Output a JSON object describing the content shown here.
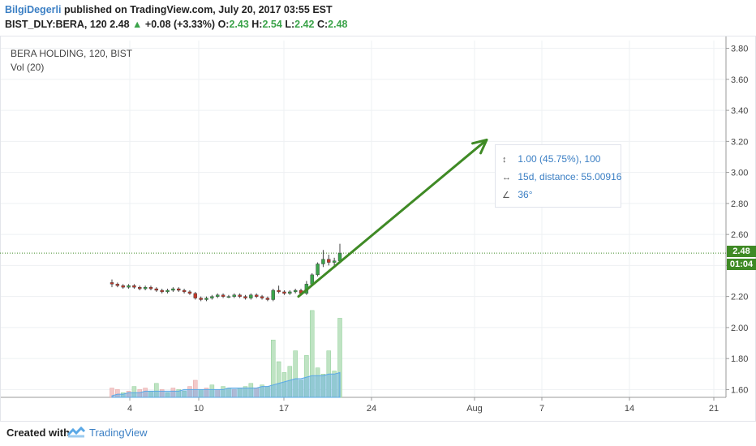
{
  "header": {
    "author": "BilgiDegerli",
    "published": "published on TradingView.com, July 20, 2017 03:55 EST",
    "symbol": "BIST_DLY:BERA, 120",
    "last": "2.48",
    "change": "+0.08 (+3.33%)",
    "o_label": "O:",
    "o_val": "2.43",
    "h_label": "H:",
    "h_val": "2.54",
    "l_label": "L:",
    "l_val": "2.42",
    "c_label": "C:",
    "c_val": "2.48"
  },
  "legend": {
    "title": "BERA HOLDING, 120, BIST",
    "indicator": "Vol (20)"
  },
  "measure": {
    "price_line": "1.00 (45.75%), 100",
    "time_line": "15d, distance: 55.00916",
    "angle_line": "36°"
  },
  "price_tags": {
    "last": "2.48",
    "countdown": "01:04"
  },
  "footer": {
    "created": "Created with",
    "brand": "TradingView"
  },
  "colors": {
    "up": "#3ba34a",
    "down": "#c0392b",
    "arrow": "#3f8a25",
    "accent": "#3b7fc4",
    "volume_up": "#bfe3c3",
    "volume_down": "#f3c9c9",
    "volume_ma": "#5aa8e6"
  },
  "chart_data": {
    "type": "candlestick",
    "ylim": [
      1.55,
      3.85
    ],
    "y_ticks": [
      "3.80",
      "3.60",
      "3.40",
      "3.20",
      "3.00",
      "2.80",
      "2.60",
      "2.40",
      "2.20",
      "2.00",
      "1.80",
      "1.60"
    ],
    "x_ticks": [
      "4",
      "10",
      "17",
      "24",
      "Aug",
      "7",
      "14",
      "21"
    ],
    "candles": [
      [
        2.29,
        2.31,
        2.26,
        2.28
      ],
      [
        2.28,
        2.29,
        2.26,
        2.27
      ],
      [
        2.27,
        2.28,
        2.25,
        2.26
      ],
      [
        2.26,
        2.28,
        2.25,
        2.27
      ],
      [
        2.27,
        2.28,
        2.25,
        2.26
      ],
      [
        2.26,
        2.27,
        2.24,
        2.25
      ],
      [
        2.25,
        2.27,
        2.24,
        2.26
      ],
      [
        2.26,
        2.27,
        2.24,
        2.25
      ],
      [
        2.25,
        2.26,
        2.23,
        2.24
      ],
      [
        2.24,
        2.25,
        2.22,
        2.23
      ],
      [
        2.23,
        2.25,
        2.22,
        2.24
      ],
      [
        2.24,
        2.26,
        2.23,
        2.25
      ],
      [
        2.25,
        2.26,
        2.23,
        2.24
      ],
      [
        2.24,
        2.25,
        2.22,
        2.23
      ],
      [
        2.23,
        2.24,
        2.21,
        2.22
      ],
      [
        2.22,
        2.23,
        2.18,
        2.19
      ],
      [
        2.19,
        2.2,
        2.17,
        2.18
      ],
      [
        2.18,
        2.2,
        2.17,
        2.19
      ],
      [
        2.19,
        2.21,
        2.18,
        2.2
      ],
      [
        2.2,
        2.22,
        2.19,
        2.21
      ],
      [
        2.21,
        2.22,
        2.19,
        2.2
      ],
      [
        2.2,
        2.21,
        2.19,
        2.2
      ],
      [
        2.2,
        2.22,
        2.19,
        2.21
      ],
      [
        2.21,
        2.22,
        2.19,
        2.2
      ],
      [
        2.2,
        2.21,
        2.18,
        2.19
      ],
      [
        2.19,
        2.22,
        2.18,
        2.21
      ],
      [
        2.21,
        2.22,
        2.19,
        2.2
      ],
      [
        2.2,
        2.21,
        2.18,
        2.19
      ],
      [
        2.19,
        2.2,
        2.17,
        2.18
      ],
      [
        2.18,
        2.25,
        2.17,
        2.24
      ],
      [
        2.24,
        2.27,
        2.22,
        2.23
      ],
      [
        2.23,
        2.24,
        2.21,
        2.22
      ],
      [
        2.22,
        2.24,
        2.21,
        2.23
      ],
      [
        2.23,
        2.25,
        2.22,
        2.24
      ],
      [
        2.24,
        2.25,
        2.21,
        2.22
      ],
      [
        2.22,
        2.3,
        2.21,
        2.28
      ],
      [
        2.28,
        2.35,
        2.27,
        2.34
      ],
      [
        2.34,
        2.42,
        2.33,
        2.41
      ],
      [
        2.41,
        2.5,
        2.39,
        2.44
      ],
      [
        2.44,
        2.47,
        2.4,
        2.42
      ],
      [
        2.42,
        2.45,
        2.4,
        2.43
      ],
      [
        2.43,
        2.54,
        2.42,
        2.48
      ]
    ],
    "volumes": [
      [
        1.61,
        0
      ],
      [
        1.6,
        0
      ],
      [
        1.58,
        1
      ],
      [
        1.59,
        0
      ],
      [
        1.62,
        1
      ],
      [
        1.6,
        0
      ],
      [
        1.61,
        0
      ],
      [
        1.59,
        1
      ],
      [
        1.64,
        1
      ],
      [
        1.6,
        0
      ],
      [
        1.58,
        1
      ],
      [
        1.61,
        0
      ],
      [
        1.6,
        1
      ],
      [
        1.59,
        1
      ],
      [
        1.62,
        0
      ],
      [
        1.66,
        0
      ],
      [
        1.6,
        1
      ],
      [
        1.61,
        0
      ],
      [
        1.63,
        1
      ],
      [
        1.6,
        0
      ],
      [
        1.62,
        1
      ],
      [
        1.61,
        1
      ],
      [
        1.6,
        0
      ],
      [
        1.61,
        1
      ],
      [
        1.62,
        1
      ],
      [
        1.64,
        1
      ],
      [
        1.61,
        0
      ],
      [
        1.63,
        1
      ],
      [
        1.62,
        1
      ],
      [
        1.92,
        1
      ],
      [
        1.78,
        1
      ],
      [
        1.71,
        1
      ],
      [
        1.75,
        1
      ],
      [
        1.85,
        1
      ],
      [
        1.66,
        1
      ],
      [
        1.82,
        1
      ],
      [
        2.11,
        1
      ],
      [
        1.74,
        1
      ],
      [
        1.7,
        1
      ],
      [
        1.85,
        1
      ],
      [
        1.72,
        1
      ],
      [
        2.06,
        1
      ]
    ],
    "volume_ma": [
      1.56,
      1.57,
      1.57,
      1.58,
      1.58,
      1.58,
      1.59,
      1.59,
      1.59,
      1.59,
      1.59,
      1.59,
      1.59,
      1.6,
      1.6,
      1.6,
      1.6,
      1.6,
      1.6,
      1.6,
      1.6,
      1.61,
      1.61,
      1.61,
      1.61,
      1.61,
      1.61,
      1.62,
      1.62,
      1.63,
      1.64,
      1.65,
      1.66,
      1.67,
      1.67,
      1.68,
      1.69,
      1.69,
      1.69,
      1.7,
      1.7,
      1.71
    ],
    "trend_arrow": {
      "from_price": 2.2,
      "to_price": 3.21,
      "label_angle": "36°"
    }
  }
}
